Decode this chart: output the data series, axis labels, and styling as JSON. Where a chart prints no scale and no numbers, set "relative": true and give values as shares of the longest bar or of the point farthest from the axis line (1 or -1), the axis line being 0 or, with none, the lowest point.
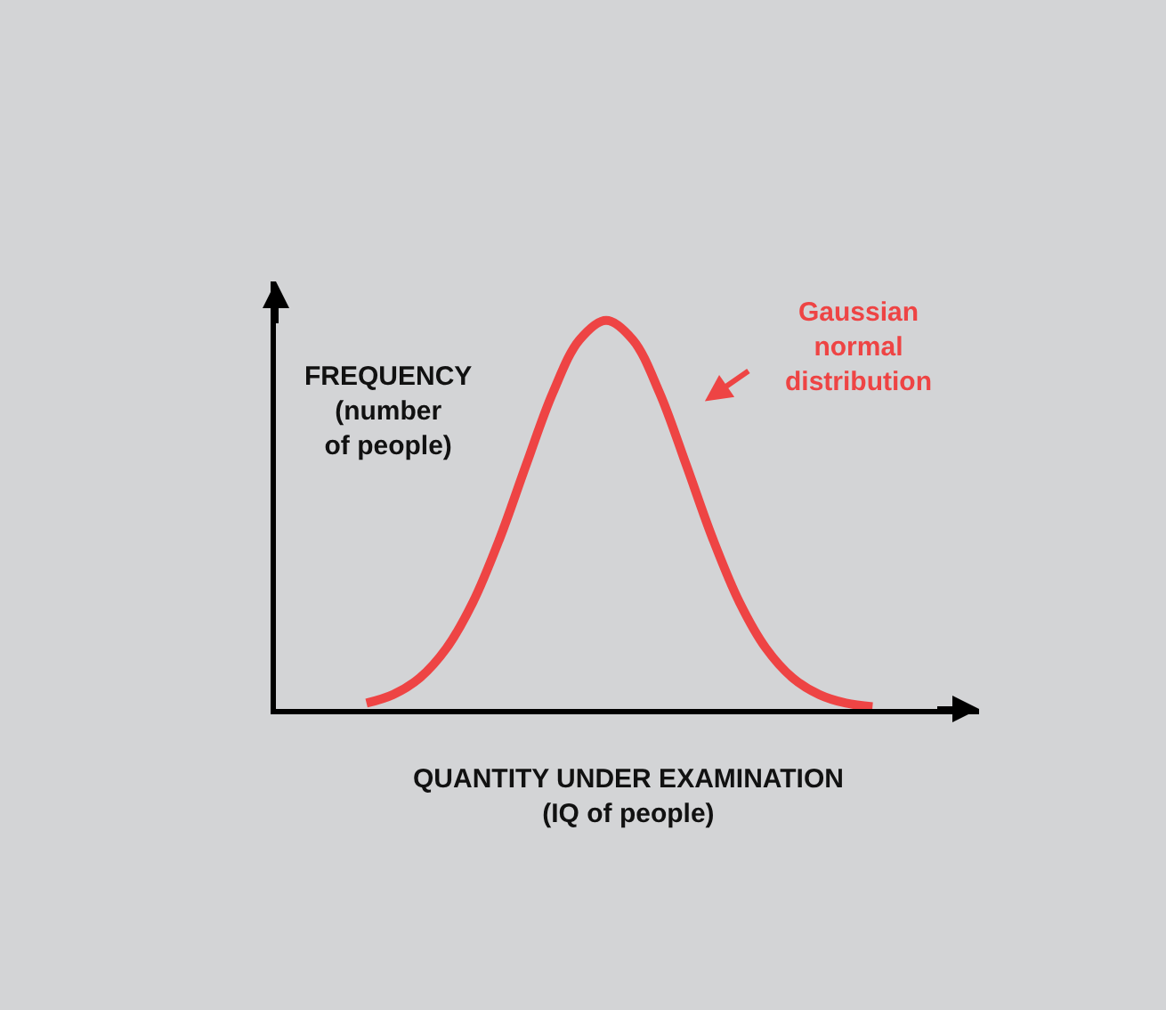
{
  "chart_data": {
    "type": "line",
    "relative": true,
    "xlabel": "QUANTITY UNDER EXAMINATION\n(IQ of people)",
    "ylabel": "FREQUENCY\n(number\nof people)",
    "categories": [
      null,
      null,
      null,
      null,
      null,
      null,
      null,
      null,
      null,
      null,
      null,
      null,
      null,
      null,
      null,
      null,
      null,
      null,
      null,
      null
    ],
    "series": [
      {
        "color": "#ee4444",
        "values": [
          0.015,
          0.037,
          0.08,
          0.156,
          0.275,
          0.438,
          0.629,
          0.814,
          0.95,
          1,
          0.95,
          0.814,
          0.629,
          0.438,
          0.275,
          0.156,
          0.08,
          0.037,
          0.015,
          0.006
        ]
      }
    ],
    "annotations": [
      "Gaussian\nnormal\ndistribution"
    ],
    "grid": false,
    "marker": "none",
    "line_style": "solid"
  }
}
